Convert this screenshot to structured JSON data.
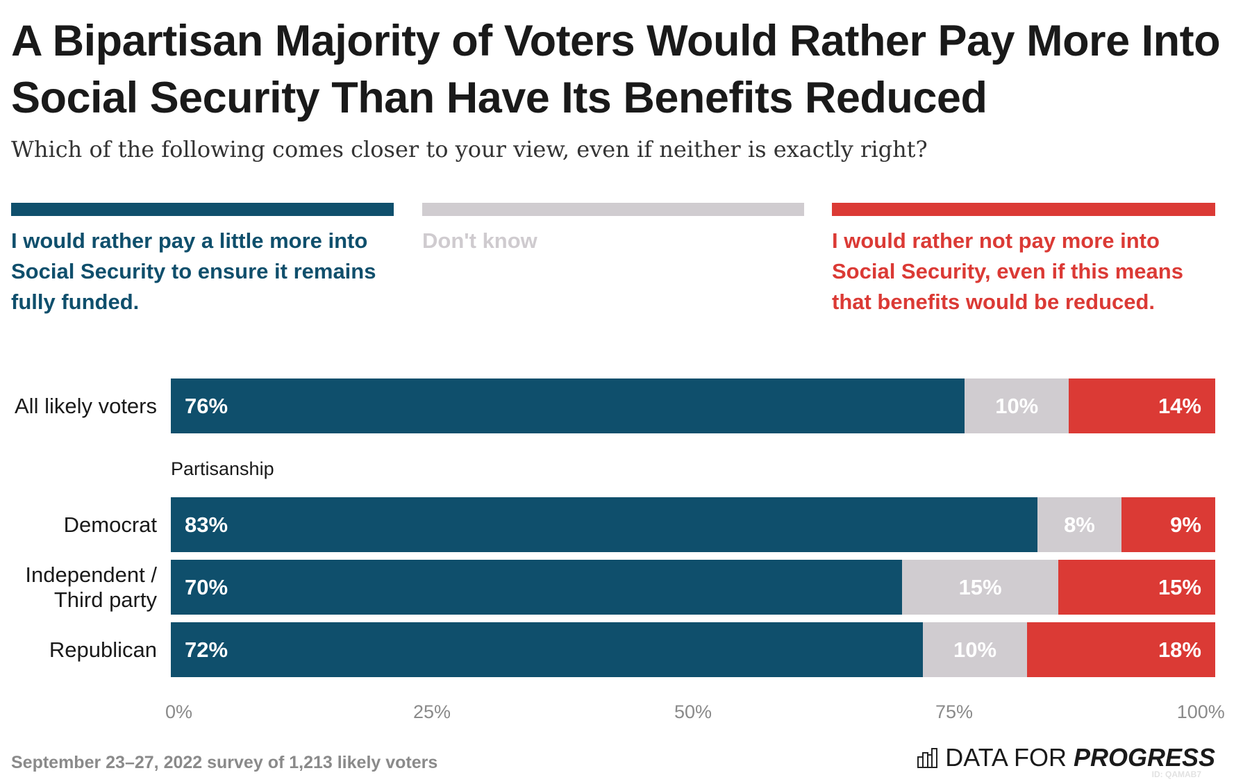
{
  "title": "A Bipartisan Majority of Voters Would Rather Pay More Into Social Security Than Have Its Benefits Reduced",
  "subtitle": "Which of the following comes closer to your view, even if neither is exactly right?",
  "footer": "September 23–27, 2022 survey of 1,213 likely voters",
  "logo": {
    "text_light": "DATA FOR",
    "text_bold": "PROGRESS",
    "icon": "bar-chart-icon",
    "watermark": "ID: QAMAB7"
  },
  "chart_data": {
    "type": "bar",
    "stacked": true,
    "orientation": "horizontal",
    "legend_placement": "top",
    "xlim": [
      0,
      100
    ],
    "x_ticks": [
      "0%",
      "25%",
      "50%",
      "75%",
      "100%"
    ],
    "series": [
      {
        "name": "I would rather pay a little more into Social Security to ensure it remains fully funded.",
        "color": "#0f4f6c",
        "label_color": "#0f4f6c"
      },
      {
        "name": "Don't know",
        "color": "#d0ccd0",
        "label_color": "#cfcbcf"
      },
      {
        "name": "I would rather not pay more into Social Security, even if this means that benefits would be reduced.",
        "color": "#db3a35",
        "label_color": "#db3a35"
      }
    ],
    "group_label": "Partisanship",
    "rows": [
      {
        "category": "All likely voters",
        "values": [
          76,
          10,
          14
        ],
        "labels": [
          "76%",
          "10%",
          "14%"
        ]
      },
      {
        "category": "Democrat",
        "values": [
          83,
          8,
          9
        ],
        "labels": [
          "83%",
          "8%",
          "9%"
        ]
      },
      {
        "category": "Independent / Third party",
        "values": [
          70,
          15,
          15
        ],
        "labels": [
          "70%",
          "15%",
          "15%"
        ]
      },
      {
        "category": "Republican",
        "values": [
          72,
          10,
          18
        ],
        "labels": [
          "72%",
          "10%",
          "18%"
        ]
      }
    ]
  }
}
